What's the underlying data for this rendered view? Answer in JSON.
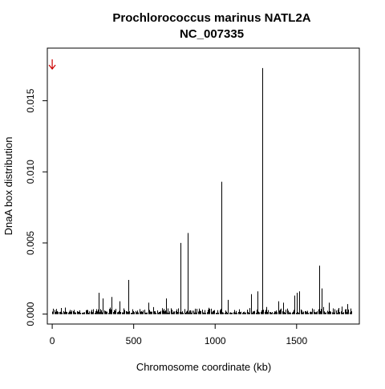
{
  "chart_data": {
    "type": "bar",
    "title": [
      "Prochlorococcus marinus NATL2A",
      "NC_007335"
    ],
    "xlabel": "Chromosome coordinate (kb)",
    "ylabel": "DnaA box distribution",
    "xlim": [
      -30,
      1885
    ],
    "ylim": [
      -0.0007,
      0.0187
    ],
    "xticks": [
      0,
      500,
      1000,
      1500
    ],
    "xtick_labels": [
      "0",
      "500",
      "1000",
      "1500"
    ],
    "yticks": [
      0.0,
      0.005,
      0.01,
      0.015
    ],
    "ytick_labels": [
      "0.000",
      "0.005",
      "0.010",
      "0.015"
    ],
    "grid": false,
    "marker": {
      "x": 0,
      "color": "#cc0000",
      "symbol": "down-arrow"
    },
    "bar_color": "#000000",
    "major_bars": [
      {
        "x": 285,
        "y": 0.0015
      },
      {
        "x": 308,
        "y": 0.0011
      },
      {
        "x": 365,
        "y": 0.0012
      },
      {
        "x": 412,
        "y": 0.0009
      },
      {
        "x": 465,
        "y": 0.0024
      },
      {
        "x": 588,
        "y": 0.0008
      },
      {
        "x": 700,
        "y": 0.0011
      },
      {
        "x": 785,
        "y": 0.005
      },
      {
        "x": 832,
        "y": 0.0057
      },
      {
        "x": 1037,
        "y": 0.0093
      },
      {
        "x": 1078,
        "y": 0.001
      },
      {
        "x": 1220,
        "y": 0.0014
      },
      {
        "x": 1262,
        "y": 0.0016
      },
      {
        "x": 1288,
        "y": 0.0173
      },
      {
        "x": 1388,
        "y": 0.0009
      },
      {
        "x": 1418,
        "y": 0.0008
      },
      {
        "x": 1488,
        "y": 0.0013
      },
      {
        "x": 1502,
        "y": 0.0015
      },
      {
        "x": 1515,
        "y": 0.0016
      },
      {
        "x": 1638,
        "y": 0.0034
      },
      {
        "x": 1652,
        "y": 0.0018
      },
      {
        "x": 1700,
        "y": 0.0008
      },
      {
        "x": 1810,
        "y": 0.0007
      }
    ],
    "baseline_bars": {
      "x_start": 0,
      "x_end": 1840,
      "step": 6,
      "max_height": 0.00055
    }
  }
}
